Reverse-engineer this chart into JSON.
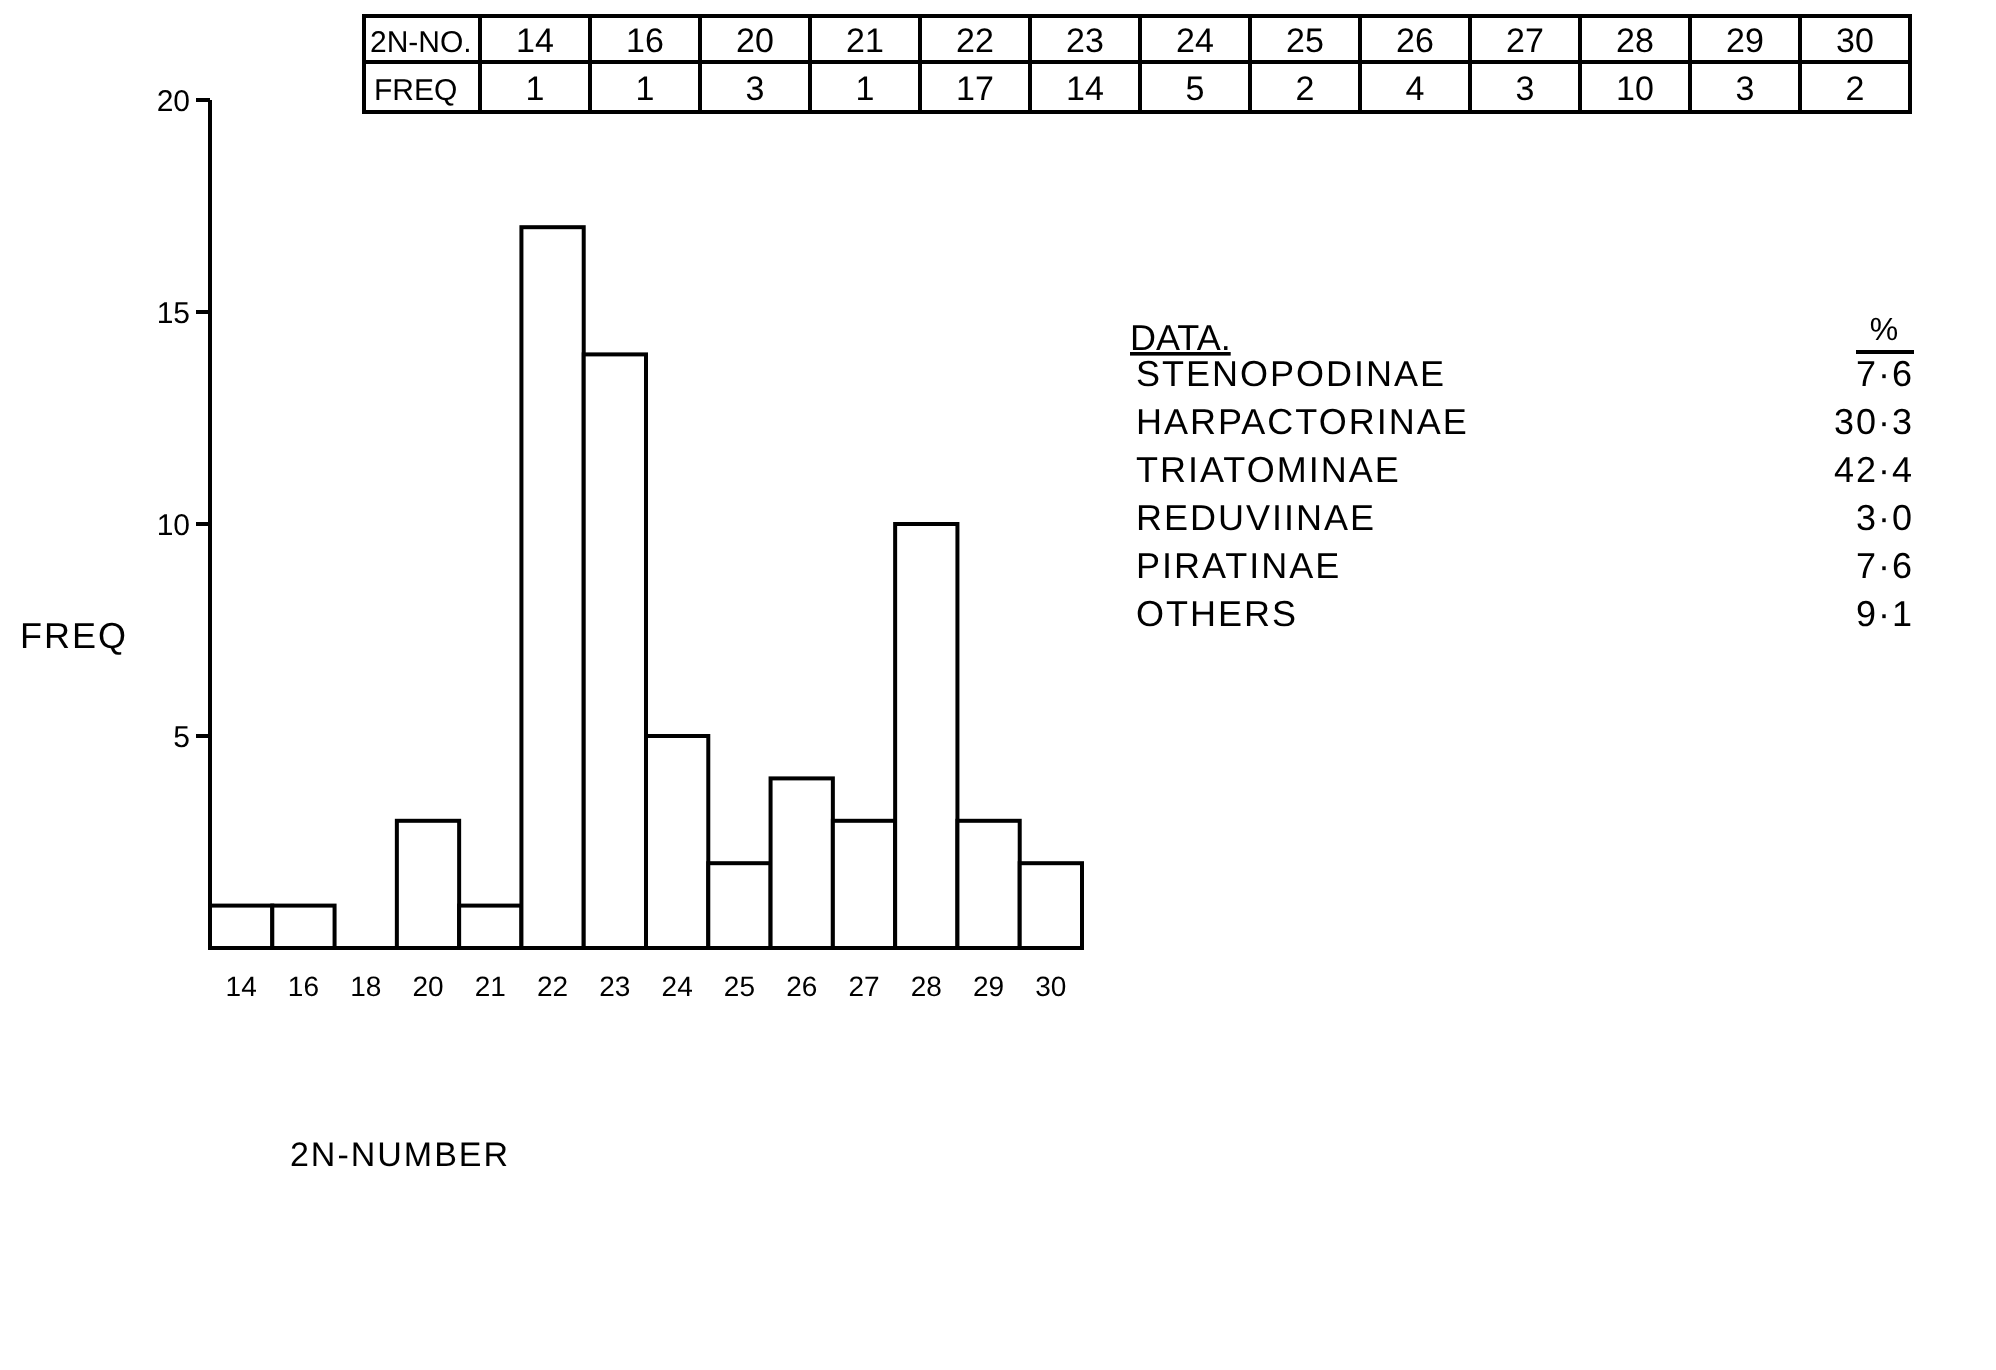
{
  "chart_data": {
    "type": "bar",
    "xlabel": "2N-NUMBER",
    "ylabel": "FREQ",
    "categories": [
      "14",
      "16",
      "18",
      "20",
      "21",
      "22",
      "23",
      "24",
      "25",
      "26",
      "27",
      "28",
      "29",
      "30"
    ],
    "values": [
      1,
      1,
      null,
      3,
      1,
      17,
      14,
      5,
      2,
      4,
      3,
      10,
      3,
      2
    ],
    "color": "#ffffff",
    "ylim": [
      0,
      20
    ],
    "yticks": [
      5,
      10,
      15,
      20
    ],
    "annotations": [
      "2N-NO.",
      "DATA.",
      "%",
      "STENOPODINAE",
      "7·6",
      "HARPACTORINAE",
      "30·3",
      "TRIATOMINAE",
      "42·4",
      "REDUVIINAE",
      "3·0",
      "PIRATINAE",
      "7·6",
      "OTHERS",
      "9·1",
      "1",
      "1",
      "3",
      "1",
      "17",
      "14",
      "5",
      "2",
      "4",
      "3",
      "10",
      "3",
      "2"
    ]
  }
}
